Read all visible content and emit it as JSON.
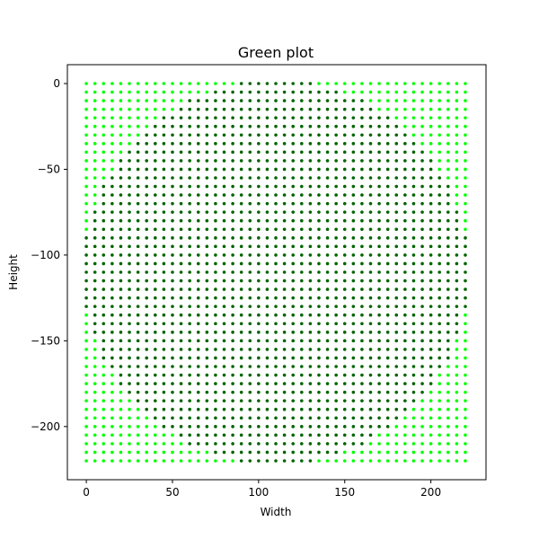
{
  "chart_data": {
    "type": "scatter",
    "title": "Green plot",
    "xlabel": "Width",
    "ylabel": "Height",
    "xlim": [
      -11,
      232
    ],
    "ylim": [
      -231,
      11
    ],
    "xticks": [
      0,
      50,
      100,
      150,
      200
    ],
    "yticks": [
      0,
      -50,
      -100,
      -150,
      -200
    ],
    "xtick_labels": [
      "0",
      "50",
      "100",
      "150",
      "200"
    ],
    "ytick_labels": [
      "0",
      "−50",
      "−100",
      "−150",
      "−200"
    ],
    "grid": false,
    "legend": "none",
    "point_grid": {
      "x_start": 0,
      "x_end": 220,
      "y_start": 0,
      "y_end": -220,
      "step": 5
    },
    "series": [
      {
        "color": "#00ff00",
        "role": "outer points (lime)"
      },
      {
        "color": "#006400",
        "role": "inner circular region (dark green)"
      }
    ],
    "inner_region": {
      "shape": "circle",
      "center": [
        110,
        -110
      ],
      "radius": 112
    }
  }
}
